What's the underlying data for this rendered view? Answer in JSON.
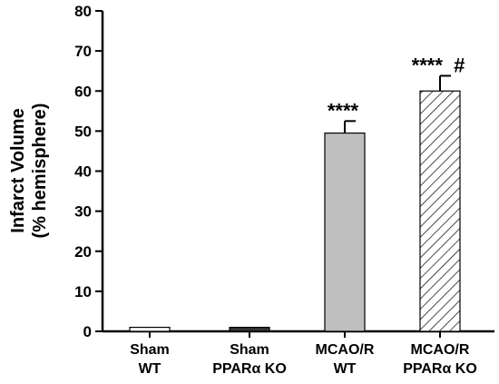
{
  "chart_data": {
    "type": "bar",
    "title": "",
    "xlabel": "",
    "ylabel_lines": [
      "Infarct Volume",
      "(% hemisphere)"
    ],
    "ylim": [
      0,
      80
    ],
    "yticks": [
      "0",
      "10",
      "20",
      "30",
      "40",
      "50",
      "60",
      "70",
      "80"
    ],
    "categories": [
      [
        "Sham",
        "WT"
      ],
      [
        "Sham",
        "PPARα KO"
      ],
      [
        "MCAO/R",
        "WT"
      ],
      [
        "MCAO/R",
        "PPARα KO"
      ]
    ],
    "values": [
      1,
      1,
      49.5,
      60
    ],
    "errors": [
      0,
      0,
      3,
      3.8
    ],
    "bar_fills": [
      "white",
      "dark",
      "gray",
      "hatched"
    ],
    "annotations": [
      "",
      "",
      "****",
      "****  #"
    ],
    "colors": {
      "white": "#ffffff",
      "dark": "#333333",
      "gray": "#bfbfbf",
      "hatch": "#000000"
    },
    "grid": false,
    "legend": "none"
  }
}
